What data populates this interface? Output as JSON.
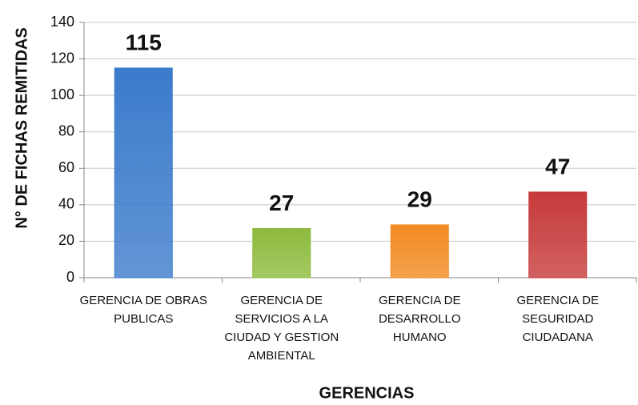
{
  "chart_data": {
    "type": "bar",
    "categories": [
      "GERENCIA DE OBRAS PUBLICAS",
      "GERENCIA DE SERVICIOS A LA CIUDAD Y GESTION AMBIENTAL",
      "GERENCIA DE DESARROLLO HUMANO",
      "GERENCIA DE SEGURIDAD CIUDADANA"
    ],
    "values": [
      115,
      27,
      29,
      47
    ],
    "colors": [
      "#3b7bcb",
      "#8dbb3d",
      "#f28a22",
      "#c63a3a"
    ],
    "x_label": "GERENCIAS",
    "y_label": "N° DE FICHAS REMITIDAS",
    "ylim": [
      0,
      140
    ],
    "yticks": [
      0,
      20,
      40,
      60,
      80,
      100,
      120,
      140
    ],
    "grid": true
  }
}
